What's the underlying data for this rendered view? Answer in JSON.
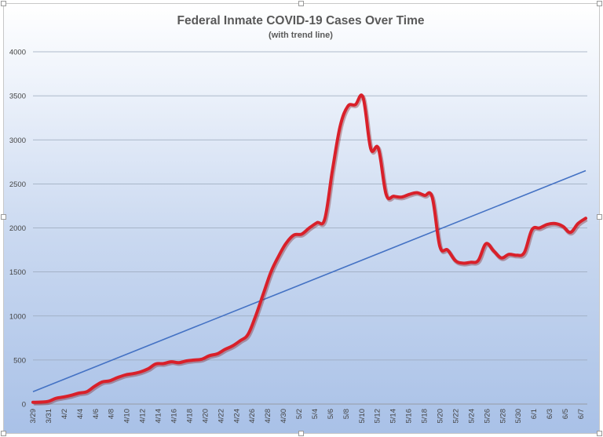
{
  "chart_data": {
    "type": "line",
    "title": "Federal Inmate COVID-19 Cases Over Time",
    "subtitle": "(with trend line)",
    "xlabel": "",
    "ylabel": "",
    "ylim": [
      0,
      4000
    ],
    "y_ticks": [
      "0",
      "500",
      "1000",
      "1500",
      "2000",
      "2500",
      "3000",
      "3500",
      "4000"
    ],
    "x_tick_labels": [
      "3/29",
      "3/31",
      "4/2",
      "4/4",
      "4/6",
      "4/8",
      "4/10",
      "4/12",
      "4/14",
      "4/16",
      "4/18",
      "4/20",
      "4/22",
      "4/24",
      "4/26",
      "4/28",
      "4/30",
      "5/2",
      "5/4",
      "5/6",
      "5/8",
      "5/10",
      "5/12",
      "5/14",
      "5/16",
      "5/18",
      "5/20",
      "5/22",
      "5/24",
      "5/26",
      "5/28",
      "5/30",
      "6/1",
      "6/3",
      "6/5",
      "6/7"
    ],
    "grid": true,
    "legend": "none",
    "series": [
      {
        "color": "#d9202a",
        "style": "thick-smooth",
        "values": [
          20,
          22,
          30,
          65,
          80,
          100,
          125,
          140,
          200,
          250,
          265,
          300,
          330,
          345,
          365,
          400,
          455,
          460,
          480,
          470,
          490,
          500,
          510,
          550,
          570,
          620,
          660,
          720,
          790,
          1000,
          1250,
          1500,
          1680,
          1830,
          1920,
          1930,
          2000,
          2060,
          2100,
          2650,
          3150,
          3380,
          3400,
          3480,
          2900,
          2900,
          2380,
          2360,
          2350,
          2380,
          2400,
          2370,
          2350,
          1790,
          1750,
          1630,
          1600,
          1610,
          1630,
          1820,
          1740,
          1660,
          1700,
          1690,
          1720,
          1980,
          2000,
          2040,
          2050,
          2020,
          1950,
          2050,
          2110
        ]
      },
      {
        "color": "#4472c4",
        "style": "trend-line",
        "values": [
          140,
          2650
        ]
      }
    ]
  }
}
